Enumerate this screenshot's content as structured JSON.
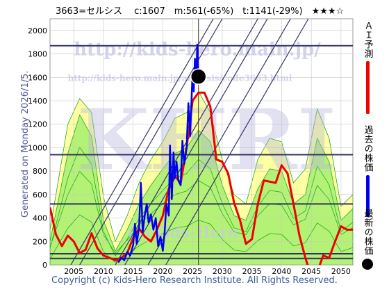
{
  "chart_data": {
    "type": "line",
    "title": "3663=セルシス　 c:1607　m:561(-65%)　t:1141(-29%)　★★★☆",
    "xlim": [
      2001,
      2052
    ],
    "ylim": [
      0,
      2100
    ],
    "x_ticks": [
      2005,
      2010,
      2015,
      2020,
      2025,
      2030,
      2035,
      2040,
      2045,
      2050
    ],
    "y_ticks": [
      0,
      200,
      400,
      600,
      800,
      1000,
      1200,
      1400,
      1600,
      1800,
      2000
    ],
    "grid": true,
    "watermarks": [
      "http://kids-hero.main.jp/",
      "http://kids-hero.main.jp/analysis/code3663.html",
      "KHRI",
      "(c)Kids-Hero"
    ],
    "side_labels": {
      "ai": "ＡＩ予測",
      "past": "過去の株価",
      "latest": "最新の株価"
    },
    "generated_text": "Generated on Monday 2026/1/5.",
    "footer": "Copyright (c) Kids-Hero Research Institute. All Rights Reserved.",
    "colors": {
      "ai": "#ee0000",
      "past": "#0000ee",
      "latest": "#000000",
      "hline": "#333366",
      "band_yellow": "#ffff99",
      "band_green": "#99ee66",
      "green_line": "#22aa22"
    },
    "horizontal_lines": [
      1870,
      940,
      520,
      95,
      55
    ],
    "diagonal_lines": [
      {
        "x": [
          2012.0,
          2036.0
        ],
        "y": [
          0,
          2100
        ]
      },
      {
        "x": [
          2013.6,
          2037.6
        ],
        "y": [
          0,
          2100
        ]
      },
      {
        "x": [
          2017.5,
          2041.5
        ],
        "y": [
          0,
          2100
        ]
      },
      {
        "x": [
          2020.5,
          2044.5
        ],
        "y": [
          0,
          2100
        ]
      },
      {
        "x": [
          2006.0,
          2030.0
        ],
        "y": [
          0,
          2100
        ]
      },
      {
        "x": [
          2004.5,
          2028.5
        ],
        "y": [
          0,
          2100
        ]
      }
    ],
    "vertical_line_x": 2026,
    "latest_point": {
      "x": 2026.0,
      "y": 1607
    },
    "series": [
      {
        "name": "ＡＩ予測",
        "x": [
          2001,
          2002,
          2003,
          2004,
          2005,
          2006,
          2007,
          2008,
          2009,
          2010,
          2011,
          2012,
          2013,
          2014,
          2015,
          2016,
          2017,
          2018,
          2019,
          2020,
          2021,
          2022,
          2023,
          2024,
          2025,
          2026,
          2027,
          2028,
          2029,
          2030,
          2031,
          2032,
          2033,
          2034,
          2035,
          2036,
          2037,
          2038,
          2039,
          2040,
          2041,
          2042,
          2043,
          2044,
          2045,
          2046,
          2047,
          2048,
          2049,
          2050,
          2051,
          2052
        ],
        "y": [
          490,
          260,
          160,
          250,
          200,
          100,
          130,
          270,
          140,
          80,
          60,
          40,
          60,
          100,
          230,
          310,
          240,
          200,
          300,
          420,
          650,
          760,
          700,
          1000,
          1400,
          1470,
          1470,
          1350,
          900,
          880,
          780,
          530,
          380,
          180,
          220,
          520,
          720,
          710,
          700,
          850,
          780,
          520,
          250,
          60,
          -100,
          -60,
          80,
          60,
          200,
          330,
          300,
          300
        ]
      },
      {
        "name": "過去の株価",
        "x": [
          2012.5,
          2013,
          2013.5,
          2014,
          2014.5,
          2015,
          2015.3,
          2015.6,
          2016,
          2016.3,
          2016.6,
          2017,
          2017.3,
          2017.6,
          2018,
          2018.4,
          2018.8,
          2019.2,
          2019.6,
          2020,
          2020.3,
          2020.6,
          2021,
          2021.2,
          2021.5,
          2021.8,
          2022,
          2022.3,
          2022.6,
          2023,
          2023.3,
          2023.6,
          2024,
          2024.3,
          2024.6,
          2025,
          2025.2,
          2025.4,
          2025.6,
          2025.8,
          2026
        ],
        "y": [
          20,
          60,
          40,
          110,
          80,
          170,
          350,
          180,
          320,
          700,
          280,
          440,
          520,
          360,
          430,
          300,
          400,
          160,
          240,
          120,
          280,
          520,
          420,
          1020,
          560,
          960,
          740,
          880,
          720,
          680,
          1060,
          860,
          1000,
          1380,
          1100,
          1650,
          1480,
          1760,
          1550,
          1880,
          1607
        ]
      }
    ],
    "bands": [
      {
        "name": "yellow",
        "x": [
          2001,
          2004,
          2006,
          2008,
          2010,
          2012,
          2014,
          2016,
          2018,
          2020,
          2022,
          2024,
          2026,
          2028,
          2030,
          2032,
          2034,
          2036,
          2038,
          2040,
          2042,
          2044,
          2046,
          2048,
          2050,
          2052
        ],
        "upper": [
          300,
          1200,
          1420,
          1300,
          580,
          200,
          420,
          700,
          900,
          1050,
          1250,
          1300,
          1480,
          1300,
          900,
          600,
          520,
          900,
          1080,
          1050,
          700,
          820,
          1330,
          1080,
          500,
          600
        ],
        "lower": [
          0,
          0,
          0,
          0,
          0,
          0,
          0,
          0,
          0,
          0,
          0,
          0,
          0,
          0,
          0,
          0,
          0,
          0,
          0,
          0,
          0,
          0,
          0,
          0,
          0,
          0
        ]
      },
      {
        "name": "green",
        "x": [
          2001,
          2004,
          2006,
          2008,
          2010,
          2012,
          2014,
          2016,
          2018,
          2020,
          2022,
          2024,
          2026,
          2028,
          2030,
          2032,
          2034,
          2036,
          2038,
          2040,
          2042,
          2044,
          2046,
          2048,
          2050,
          2052
        ],
        "upper": [
          200,
          950,
          1280,
          1100,
          380,
          120,
          300,
          520,
          680,
          820,
          950,
          1000,
          1150,
          1050,
          680,
          420,
          380,
          650,
          820,
          800,
          520,
          600,
          1080,
          880,
          380,
          480
        ],
        "lower": [
          0,
          0,
          0,
          0,
          0,
          0,
          0,
          0,
          0,
          0,
          0,
          0,
          0,
          0,
          0,
          0,
          0,
          0,
          0,
          0,
          0,
          0,
          0,
          0,
          0,
          0
        ]
      }
    ]
  }
}
